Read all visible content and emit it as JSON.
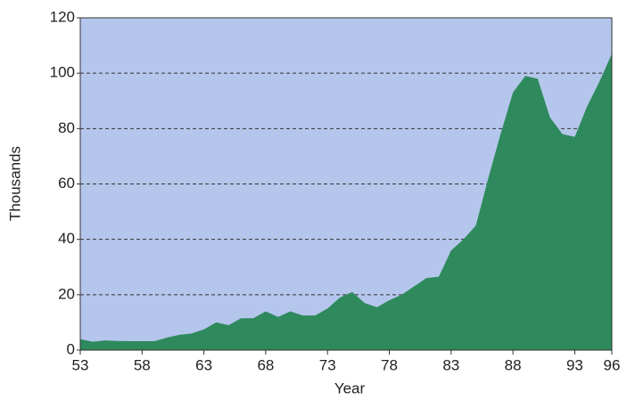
{
  "chart_data": {
    "type": "area",
    "x": [
      53,
      54,
      55,
      56,
      57,
      58,
      59,
      60,
      61,
      62,
      63,
      64,
      65,
      66,
      67,
      68,
      69,
      70,
      71,
      72,
      73,
      74,
      75,
      76,
      77,
      78,
      79,
      80,
      81,
      82,
      83,
      84,
      85,
      86,
      87,
      88,
      89,
      90,
      91,
      92,
      93,
      94,
      95,
      96
    ],
    "values": [
      4,
      3,
      3.5,
      3.3,
      3.2,
      3.2,
      3.2,
      4.5,
      5.5,
      6,
      7.5,
      10,
      9,
      11.5,
      11.5,
      14,
      12,
      14,
      12.5,
      12.5,
      15,
      19,
      21,
      17,
      15.5,
      18,
      20,
      23,
      26,
      26.5,
      36,
      40,
      45,
      62,
      78,
      93,
      99,
      98,
      84,
      78,
      77,
      88,
      97,
      107
    ],
    "color": "#2e8a5c",
    "background": "#b5c6ec",
    "xlabel": "Year",
    "ylabel": "Thousands",
    "xlim": [
      53,
      96
    ],
    "xticks": [
      53,
      58,
      63,
      68,
      73,
      78,
      83,
      88,
      93,
      96
    ],
    "ylim": [
      0,
      120
    ],
    "yticks": [
      0,
      20,
      40,
      60,
      80,
      100,
      120
    ],
    "grid": true
  }
}
